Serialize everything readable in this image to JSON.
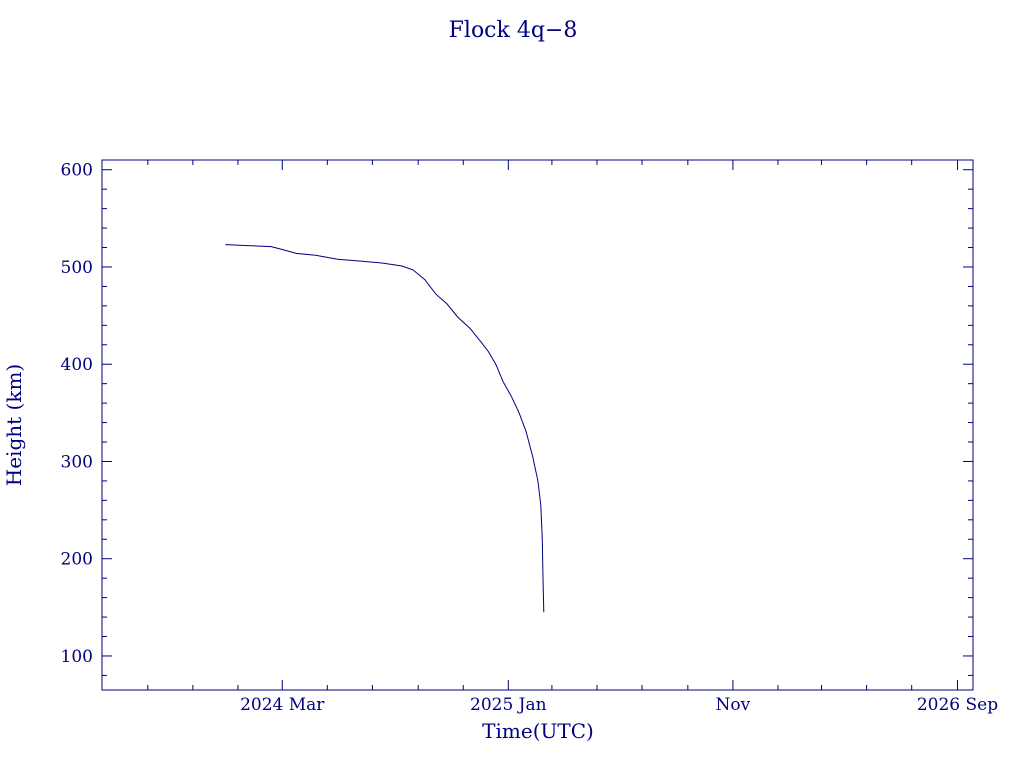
{
  "chart_data": {
    "type": "line",
    "title": "Flock 4q−8",
    "xlabel": "Time(UTC)",
    "ylabel": "Height (km)",
    "ylim": [
      65,
      610
    ],
    "xlim": [
      "2023-07-01",
      "2026-09-22"
    ],
    "grid": false,
    "colors": {
      "axis": "#000080",
      "line": "#000080",
      "text": "#000080"
    },
    "x_ticks": [
      {
        "date": "2024-03-01",
        "label": "2024 Mar"
      },
      {
        "date": "2025-01-01",
        "label": "2025 Jan"
      },
      {
        "date": "2025-11-01",
        "label": "Nov"
      },
      {
        "date": "2026-09-01",
        "label": "2026 Sep"
      }
    ],
    "x_minor_ticks": [
      "2023-09-01",
      "2023-11-01",
      "2024-01-01",
      "2024-05-01",
      "2024-07-01",
      "2024-09-01",
      "2024-11-01",
      "2025-03-01",
      "2025-05-01",
      "2025-07-01",
      "2025-09-01",
      "2026-01-01",
      "2026-03-01",
      "2026-05-01",
      "2026-07-01"
    ],
    "y_ticks": [
      100,
      200,
      300,
      400,
      500,
      600
    ],
    "y_minor_step": 20,
    "series": [
      {
        "x": [
          "2023-12-15",
          "2024-01-15",
          "2024-02-15",
          "2024-03-01",
          "2024-03-20",
          "2024-04-15",
          "2024-05-15",
          "2024-06-15",
          "2024-07-15",
          "2024-08-10",
          "2024-08-25",
          "2024-09-10",
          "2024-09-25",
          "2024-10-10",
          "2024-10-25",
          "2024-11-10",
          "2024-11-25",
          "2024-12-05",
          "2024-12-15",
          "2024-12-25",
          "2025-01-05",
          "2025-01-15",
          "2025-01-25",
          "2025-02-03",
          "2025-02-10",
          "2025-02-14",
          "2025-02-16",
          "2025-02-17",
          "2025-02-18"
        ],
        "y": [
          523,
          522,
          521,
          518,
          514,
          512,
          508,
          506,
          504,
          501,
          497,
          487,
          472,
          462,
          448,
          437,
          423,
          413,
          400,
          382,
          367,
          351,
          331,
          305,
          280,
          255,
          220,
          180,
          145
        ]
      }
    ]
  }
}
